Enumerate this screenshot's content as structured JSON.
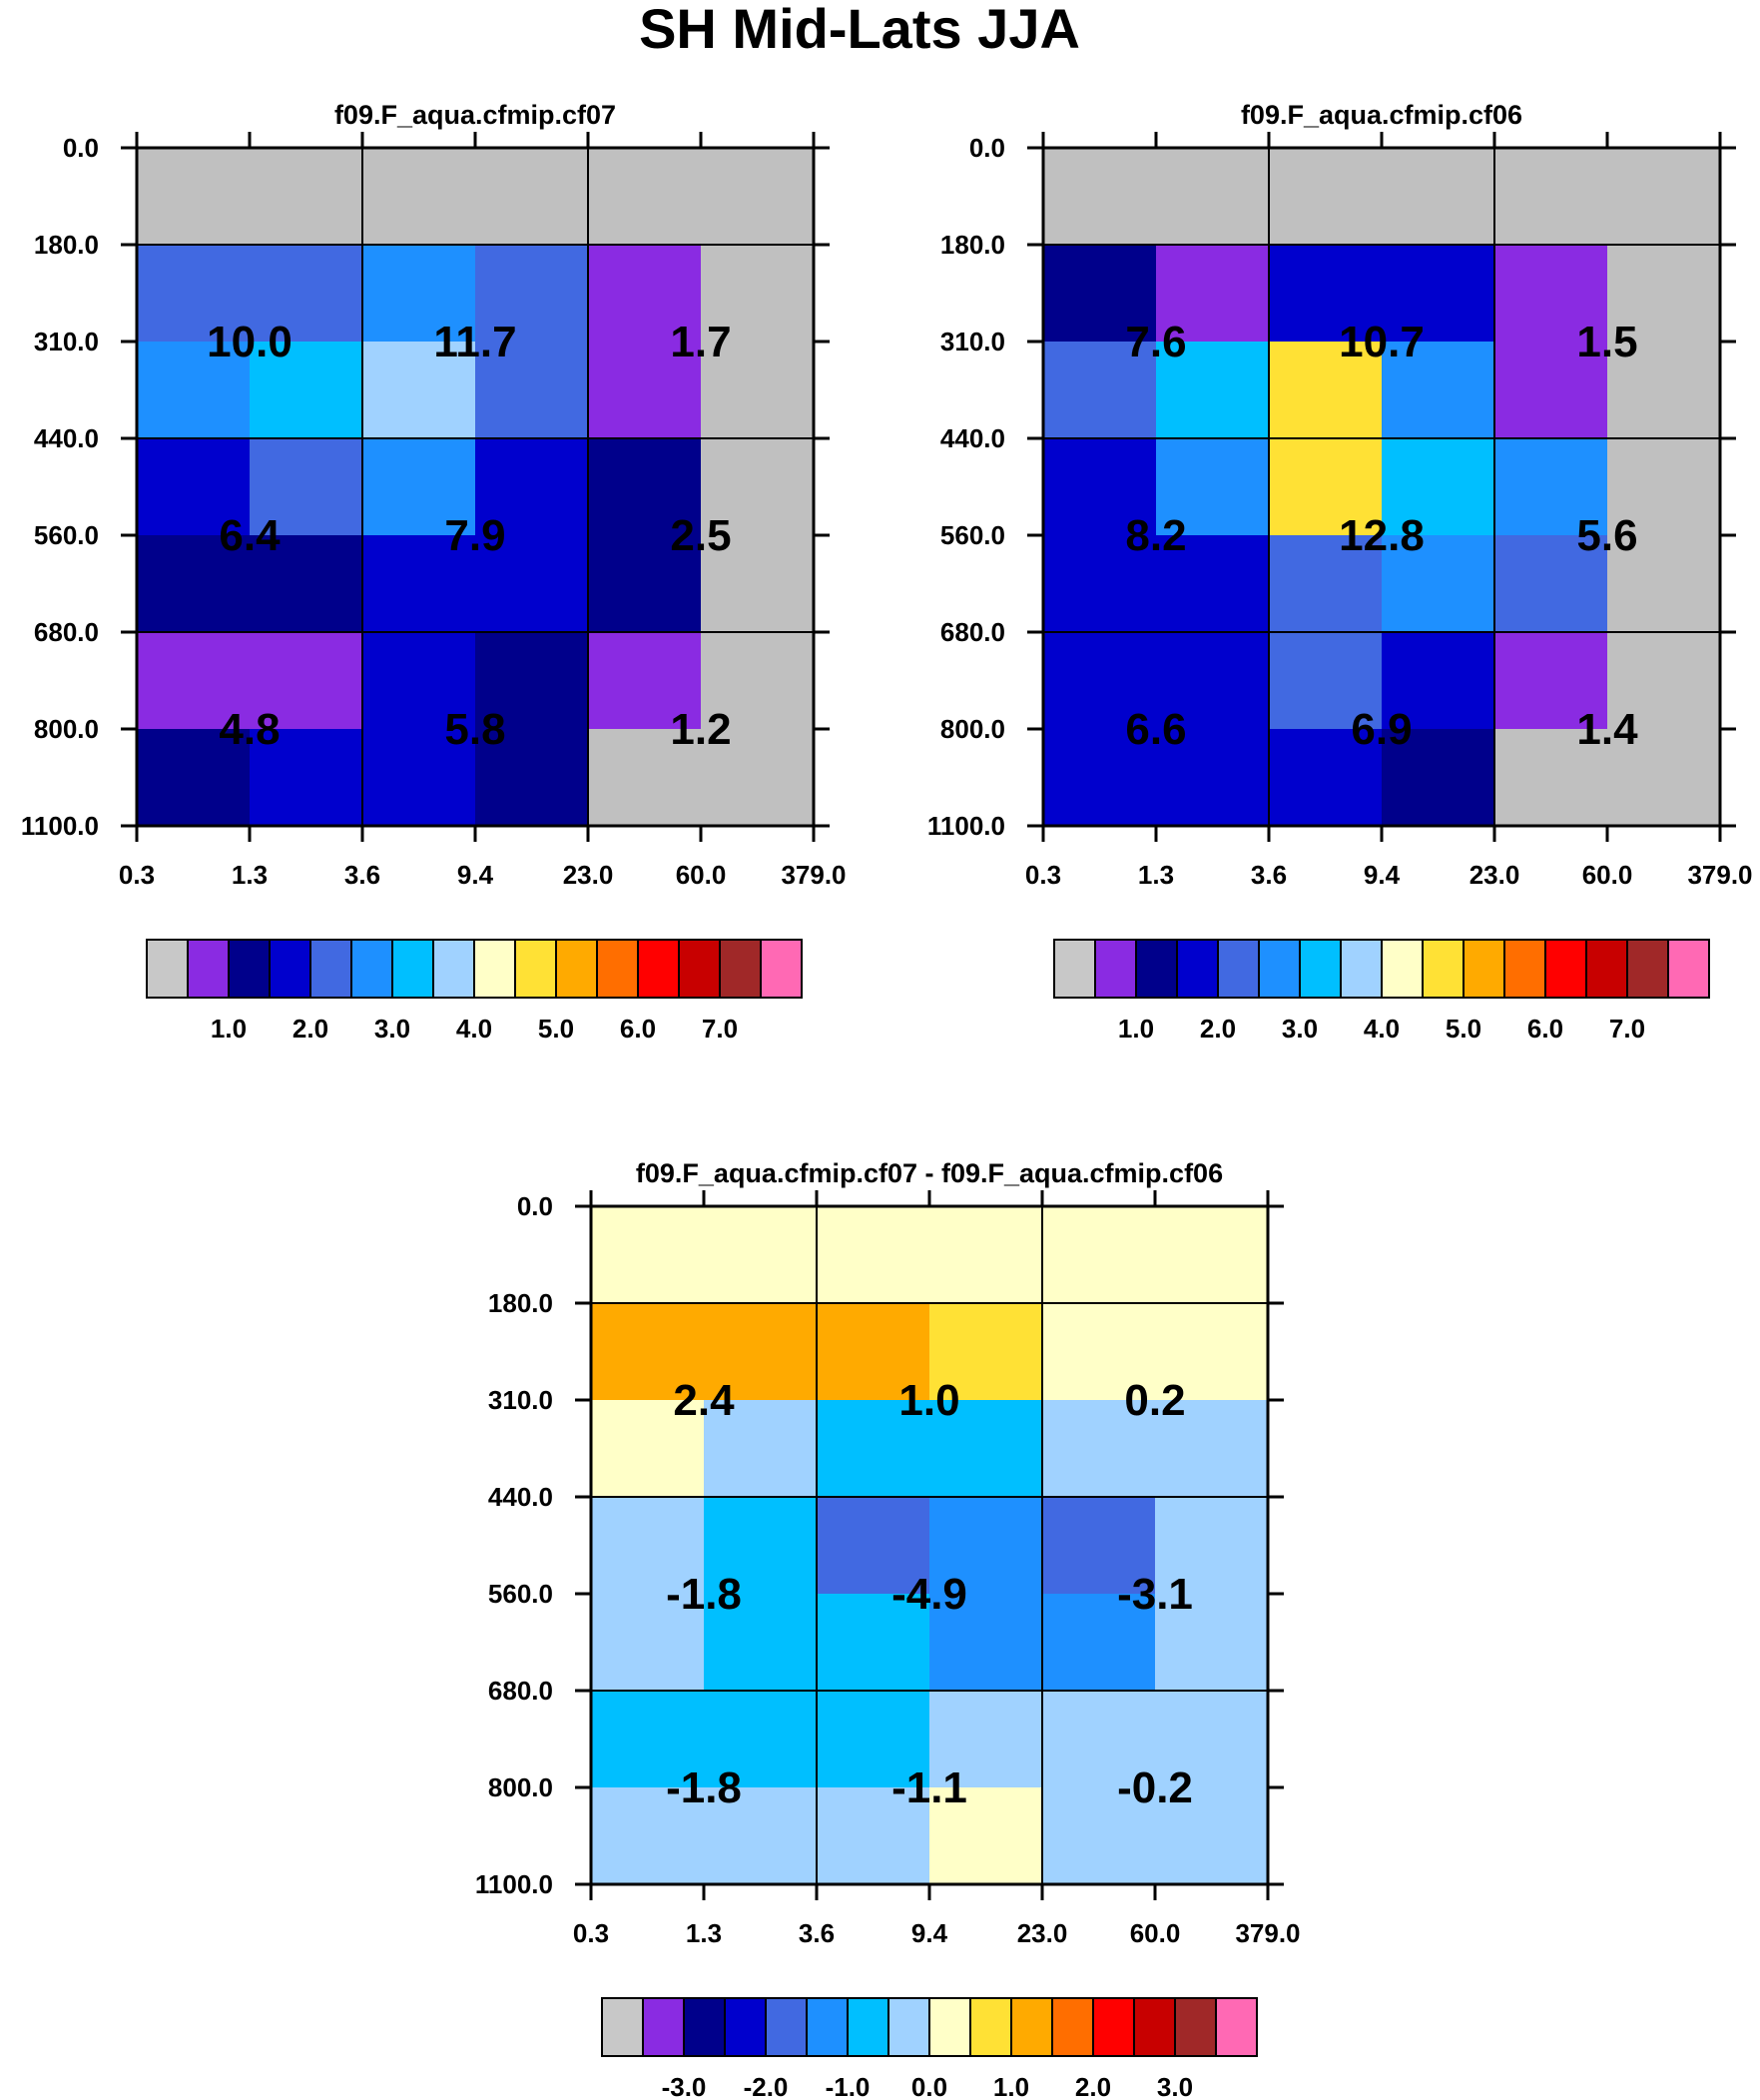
{
  "main_title": "SH Mid-Lats JJA",
  "chart_data": [
    {
      "type": "heatmap",
      "title": "f09.F_aqua.cfmip.cf07",
      "x_ticks": [
        "0.3",
        "1.3",
        "3.6",
        "9.4",
        "23.0",
        "60.0",
        "379.0"
      ],
      "y_ticks": [
        "0.0",
        "180.0",
        "310.0",
        "440.0",
        "560.0",
        "680.0",
        "800.0",
        "1100.0"
      ],
      "grid_colors": [
        [
          "#c0c0c0",
          "#c0c0c0",
          "#c0c0c0",
          "#c0c0c0",
          "#c0c0c0",
          "#c0c0c0"
        ],
        [
          "#4169e1",
          "#4169e1",
          "#1e90ff",
          "#4169e1",
          "#8a2be2",
          "#c0c0c0"
        ],
        [
          "#1e90ff",
          "#00bfff",
          "#a0d2ff",
          "#4169e1",
          "#8a2be2",
          "#c0c0c0"
        ],
        [
          "#0000cd",
          "#4169e1",
          "#1e90ff",
          "#0000cd",
          "#00008b",
          "#c0c0c0"
        ],
        [
          "#00008b",
          "#00008b",
          "#0000cd",
          "#0000cd",
          "#00008b",
          "#c0c0c0"
        ],
        [
          "#8a2be2",
          "#8a2be2",
          "#0000cd",
          "#00008b",
          "#8a2be2",
          "#c0c0c0"
        ],
        [
          "#00008b",
          "#0000cd",
          "#0000cd",
          "#00008b",
          "#c0c0c0",
          "#c0c0c0"
        ]
      ],
      "block_values": [
        [
          "10.0",
          "11.7",
          "1.7"
        ],
        [
          "6.4",
          "7.9",
          "2.5"
        ],
        [
          "4.8",
          "5.8",
          "1.2"
        ]
      ],
      "colorbar": {
        "colors": [
          "#c8c8c8",
          "#8a2be2",
          "#00008b",
          "#0000cd",
          "#4169e1",
          "#1e90ff",
          "#00bfff",
          "#a0d2ff",
          "#ffffc8",
          "#ffe135",
          "#ffaa00",
          "#ff6e00",
          "#ff0000",
          "#c80000",
          "#a02828",
          "#ff69b4"
        ],
        "labels": [
          "1.0",
          "2.0",
          "3.0",
          "4.0",
          "5.0",
          "6.0",
          "7.0"
        ]
      }
    },
    {
      "type": "heatmap",
      "title": "f09.F_aqua.cfmip.cf06",
      "x_ticks": [
        "0.3",
        "1.3",
        "3.6",
        "9.4",
        "23.0",
        "60.0",
        "379.0"
      ],
      "y_ticks": [
        "0.0",
        "180.0",
        "310.0",
        "440.0",
        "560.0",
        "680.0",
        "800.0",
        "1100.0"
      ],
      "grid_colors": [
        [
          "#c0c0c0",
          "#c0c0c0",
          "#c0c0c0",
          "#c0c0c0",
          "#c0c0c0",
          "#c0c0c0"
        ],
        [
          "#00008b",
          "#8a2be2",
          "#0000cd",
          "#0000cd",
          "#8a2be2",
          "#c0c0c0"
        ],
        [
          "#4169e1",
          "#00bfff",
          "#ffe135",
          "#1e90ff",
          "#8a2be2",
          "#c0c0c0"
        ],
        [
          "#0000cd",
          "#1e90ff",
          "#ffe135",
          "#00bfff",
          "#1e90ff",
          "#c0c0c0"
        ],
        [
          "#0000cd",
          "#0000cd",
          "#4169e1",
          "#1e90ff",
          "#4169e1",
          "#c0c0c0"
        ],
        [
          "#0000cd",
          "#0000cd",
          "#4169e1",
          "#0000cd",
          "#8a2be2",
          "#c0c0c0"
        ],
        [
          "#0000cd",
          "#0000cd",
          "#0000cd",
          "#00008b",
          "#c0c0c0",
          "#c0c0c0"
        ]
      ],
      "block_values": [
        [
          "7.6",
          "10.7",
          "1.5"
        ],
        [
          "8.2",
          "12.8",
          "5.6"
        ],
        [
          "6.6",
          "6.9",
          "1.4"
        ]
      ],
      "colorbar": {
        "colors": [
          "#c8c8c8",
          "#8a2be2",
          "#00008b",
          "#0000cd",
          "#4169e1",
          "#1e90ff",
          "#00bfff",
          "#a0d2ff",
          "#ffffc8",
          "#ffe135",
          "#ffaa00",
          "#ff6e00",
          "#ff0000",
          "#c80000",
          "#a02828",
          "#ff69b4"
        ],
        "labels": [
          "1.0",
          "2.0",
          "3.0",
          "4.0",
          "5.0",
          "6.0",
          "7.0"
        ]
      }
    },
    {
      "type": "heatmap",
      "title": "f09.F_aqua.cfmip.cf07 - f09.F_aqua.cfmip.cf06",
      "x_ticks": [
        "0.3",
        "1.3",
        "3.6",
        "9.4",
        "23.0",
        "60.0",
        "379.0"
      ],
      "y_ticks": [
        "0.0",
        "180.0",
        "310.0",
        "440.0",
        "560.0",
        "680.0",
        "800.0",
        "1100.0"
      ],
      "grid_colors": [
        [
          "#ffffc8",
          "#ffffc8",
          "#ffffc8",
          "#ffffc8",
          "#ffffc8",
          "#ffffc8"
        ],
        [
          "#ffaa00",
          "#ffaa00",
          "#ffaa00",
          "#ffe135",
          "#ffffc8",
          "#ffffc8"
        ],
        [
          "#ffffc8",
          "#a0d2ff",
          "#00bfff",
          "#00bfff",
          "#a0d2ff",
          "#a0d2ff"
        ],
        [
          "#a0d2ff",
          "#00bfff",
          "#4169e1",
          "#1e90ff",
          "#4169e1",
          "#a0d2ff"
        ],
        [
          "#a0d2ff",
          "#00bfff",
          "#00bfff",
          "#1e90ff",
          "#1e90ff",
          "#a0d2ff"
        ],
        [
          "#00bfff",
          "#00bfff",
          "#00bfff",
          "#a0d2ff",
          "#a0d2ff",
          "#a0d2ff"
        ],
        [
          "#a0d2ff",
          "#a0d2ff",
          "#a0d2ff",
          "#ffffc8",
          "#a0d2ff",
          "#a0d2ff"
        ]
      ],
      "block_values": [
        [
          "2.4",
          "1.0",
          "0.2"
        ],
        [
          "-1.8",
          "-4.9",
          "-3.1"
        ],
        [
          "-1.8",
          "-1.1",
          "-0.2"
        ]
      ],
      "colorbar": {
        "colors": [
          "#c8c8c8",
          "#8a2be2",
          "#00008b",
          "#0000cd",
          "#4169e1",
          "#1e90ff",
          "#00bfff",
          "#a0d2ff",
          "#ffffc8",
          "#ffe135",
          "#ffaa00",
          "#ff6e00",
          "#ff0000",
          "#c80000",
          "#a02828",
          "#ff69b4"
        ],
        "labels": [
          "-3.0",
          "-2.0",
          "-1.0",
          "0.0",
          "1.0",
          "2.0",
          "3.0"
        ]
      }
    }
  ]
}
